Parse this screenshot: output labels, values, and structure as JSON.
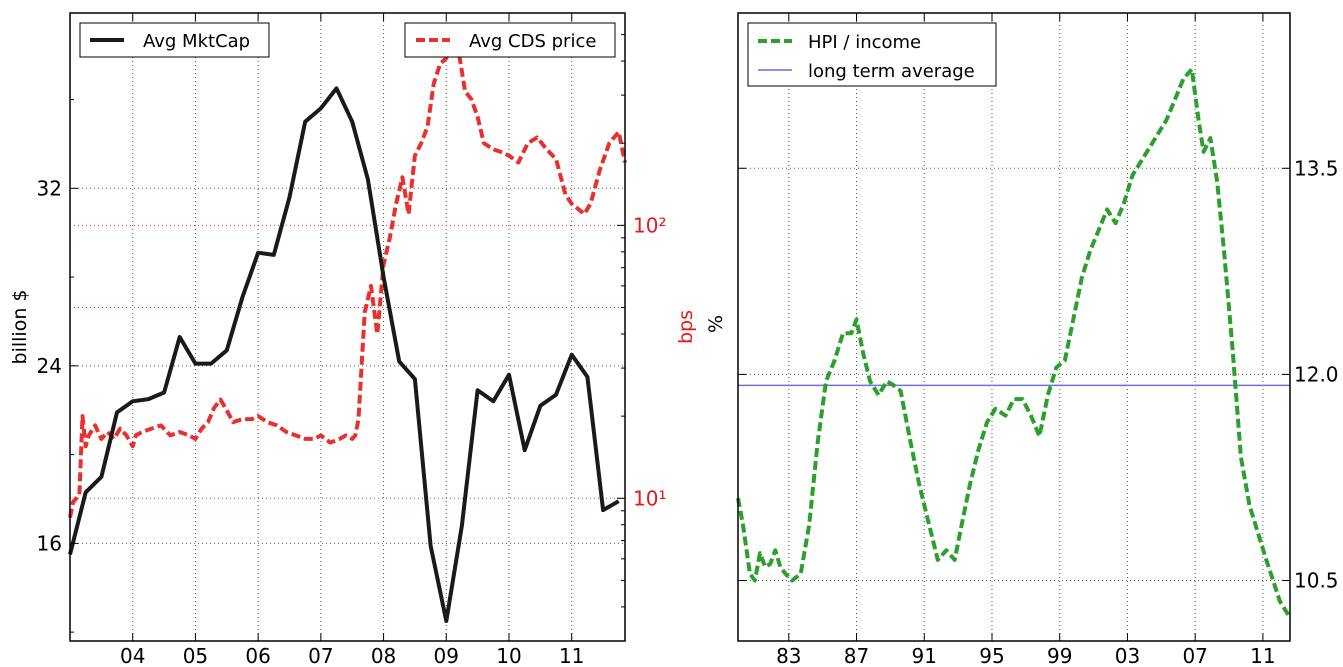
{
  "colors": {
    "mktcap": "#1a1a1a",
    "cds": "#e8302e",
    "hpi": "#2ca02c",
    "avg": "#6f6fd8",
    "grid_black": "#555555",
    "grid_red": "#e8302e"
  },
  "chart_data": [
    {
      "type": "line",
      "xlabel": "",
      "ylabel": "billion $",
      "y2label": "bps",
      "x_ticks": [
        "04",
        "05",
        "06",
        "07",
        "08",
        "09",
        "10",
        "11"
      ],
      "x_tick_values": [
        2004,
        2005,
        2006,
        2007,
        2008,
        2009,
        2010,
        2011
      ],
      "xlim": [
        2003.0,
        2011.85
      ],
      "y_ticks": [
        "16",
        "24",
        "32"
      ],
      "y_tick_values": [
        16,
        24,
        32
      ],
      "ylim": [
        11.6,
        39.9
      ],
      "y2_scale": "log",
      "y2_ticks": [
        "10¹",
        "10²"
      ],
      "y2_tick_values": [
        10,
        100
      ],
      "y2lim": [
        3.0,
        600
      ],
      "grid": true,
      "legend": [
        {
          "label": "Avg MktCap",
          "placement": "top-left"
        },
        {
          "label": "Avg CDS price",
          "placement": "top-right"
        }
      ],
      "series": [
        {
          "name": "Avg MktCap",
          "axis": "left",
          "x": [
            2003.0,
            2003.25,
            2003.5,
            2003.75,
            2004.0,
            2004.25,
            2004.5,
            2004.75,
            2005.0,
            2005.25,
            2005.5,
            2005.75,
            2006.0,
            2006.25,
            2006.5,
            2006.75,
            2007.0,
            2007.25,
            2007.5,
            2007.75,
            2008.0,
            2008.25,
            2008.5,
            2008.75,
            2009.0,
            2009.25,
            2009.5,
            2009.75,
            2010.0,
            2010.25,
            2010.5,
            2010.75,
            2011.0,
            2011.25,
            2011.5,
            2011.75
          ],
          "y": [
            15.5,
            18.3,
            19.0,
            21.9,
            22.4,
            22.5,
            22.8,
            25.3,
            24.1,
            24.1,
            24.7,
            27.1,
            29.1,
            29.0,
            31.6,
            35.0,
            35.6,
            36.5,
            35.0,
            32.4,
            28.0,
            24.2,
            23.4,
            15.9,
            12.5,
            16.8,
            22.9,
            22.4,
            23.6,
            20.2,
            22.2,
            22.7,
            24.5,
            23.5,
            17.5,
            17.9
          ]
        },
        {
          "name": "Avg CDS price",
          "axis": "right",
          "x": [
            2003.0,
            2003.05,
            2003.1,
            2003.15,
            2003.2,
            2003.25,
            2003.3,
            2003.4,
            2003.5,
            2003.6,
            2003.7,
            2003.8,
            2003.9,
            2004.0,
            2004.05,
            2004.15,
            2004.3,
            2004.45,
            2004.6,
            2004.75,
            2004.9,
            2005.0,
            2005.1,
            2005.2,
            2005.3,
            2005.4,
            2005.5,
            2005.6,
            2005.75,
            2005.9,
            2006.0,
            2006.15,
            2006.3,
            2006.45,
            2006.6,
            2006.75,
            2006.9,
            2007.0,
            2007.15,
            2007.3,
            2007.4,
            2007.5,
            2007.55,
            2007.6,
            2007.7,
            2007.8,
            2007.9,
            2008.0,
            2008.1,
            2008.2,
            2008.3,
            2008.4,
            2008.5,
            2008.6,
            2008.7,
            2008.8,
            2008.9,
            2009.0,
            2009.1,
            2009.2,
            2009.3,
            2009.4,
            2009.5,
            2009.6,
            2009.75,
            2009.9,
            2010.0,
            2010.15,
            2010.3,
            2010.45,
            2010.6,
            2010.75,
            2010.9,
            2011.0,
            2011.1,
            2011.2,
            2011.3,
            2011.45,
            2011.6,
            2011.75,
            2011.85
          ],
          "y": [
            8.5,
            9.7,
            10.0,
            10.3,
            20.0,
            15.5,
            17.0,
            18.5,
            16.5,
            17.5,
            16.5,
            18.0,
            17.0,
            15.5,
            17.0,
            17.5,
            18.0,
            18.5,
            17.0,
            17.5,
            17.0,
            16.5,
            18.0,
            19.0,
            21.5,
            23.0,
            21.0,
            19.0,
            19.5,
            19.5,
            20.0,
            19.0,
            18.5,
            17.5,
            17.0,
            16.5,
            16.5,
            17.0,
            16.0,
            16.5,
            17.0,
            16.5,
            17.0,
            19.5,
            48.0,
            60.0,
            40.0,
            72.0,
            90.0,
            120.0,
            150.0,
            110.0,
            180.0,
            200.0,
            230.0,
            330.0,
            390.0,
            410.0,
            470.0,
            430.0,
            310.0,
            290.0,
            250.0,
            200.0,
            190.0,
            185.0,
            180.0,
            170.0,
            200.0,
            210.0,
            190.0,
            175.0,
            130.0,
            120.0,
            115.0,
            110.0,
            120.0,
            160.0,
            200.0,
            220.0,
            170.0
          ]
        }
      ]
    },
    {
      "type": "line",
      "xlabel": "",
      "ylabel": "%",
      "x_ticks": [
        "83",
        "87",
        "91",
        "95",
        "99",
        "03",
        "07",
        "11"
      ],
      "x_tick_values": [
        1983,
        1987,
        1991,
        1995,
        1999,
        2003,
        2007,
        2011
      ],
      "xlim": [
        1980.0,
        2012.6
      ],
      "y_ticks": [
        "10.5",
        "12.0",
        "13.5"
      ],
      "y_tick_values": [
        10.5,
        12.0,
        13.5
      ],
      "ylim": [
        10.06,
        14.63
      ],
      "y_axis_side": "right",
      "grid": true,
      "legend": [
        {
          "label": "HPI / income",
          "placement": "top-left"
        },
        {
          "label": "long term average",
          "placement": "top-left"
        }
      ],
      "series": [
        {
          "name": "HPI / income",
          "x": [
            1980.0,
            1980.3,
            1980.7,
            1981.0,
            1981.3,
            1981.6,
            1981.9,
            1982.2,
            1982.5,
            1982.8,
            1983.2,
            1983.7,
            1984.2,
            1984.7,
            1985.2,
            1985.7,
            1986.2,
            1986.7,
            1987.0,
            1987.4,
            1987.8,
            1988.3,
            1988.8,
            1989.2,
            1989.6,
            1990.2,
            1990.7,
            1991.2,
            1991.8,
            1992.3,
            1992.8,
            1993.2,
            1993.7,
            1994.2,
            1994.7,
            1995.2,
            1995.8,
            1996.3,
            1996.8,
            1997.3,
            1997.8,
            1998.3,
            1998.8,
            1999.3,
            1999.8,
            2000.3,
            2000.8,
            2001.3,
            2001.8,
            2002.3,
            2002.8,
            2003.3,
            2003.8,
            2004.3,
            2004.8,
            2005.3,
            2005.8,
            2006.3,
            2006.8,
            2007.2,
            2007.5,
            2007.9,
            2008.3,
            2008.7,
            2009.2,
            2009.7,
            2010.2,
            2010.7,
            2011.2,
            2011.6,
            2012.0,
            2012.5
          ],
          "y": [
            11.1,
            10.9,
            10.55,
            10.5,
            10.7,
            10.6,
            10.62,
            10.72,
            10.6,
            10.55,
            10.5,
            10.55,
            10.9,
            11.5,
            11.95,
            12.1,
            12.3,
            12.3,
            12.4,
            12.15,
            11.95,
            11.85,
            11.95,
            11.92,
            11.88,
            11.5,
            11.2,
            10.95,
            10.65,
            10.72,
            10.65,
            10.9,
            11.2,
            11.45,
            11.65,
            11.75,
            11.7,
            11.82,
            11.82,
            11.7,
            11.55,
            11.85,
            12.05,
            12.1,
            12.4,
            12.7,
            12.9,
            13.05,
            13.2,
            13.1,
            13.25,
            13.45,
            13.55,
            13.65,
            13.75,
            13.85,
            14.0,
            14.15,
            14.22,
            13.85,
            13.62,
            13.72,
            13.4,
            12.9,
            12.2,
            11.4,
            11.05,
            10.85,
            10.65,
            10.5,
            10.35,
            10.25
          ]
        },
        {
          "name": "long term average",
          "x": [
            1980.0,
            2012.6
          ],
          "y": [
            11.92,
            11.92
          ]
        }
      ]
    }
  ]
}
